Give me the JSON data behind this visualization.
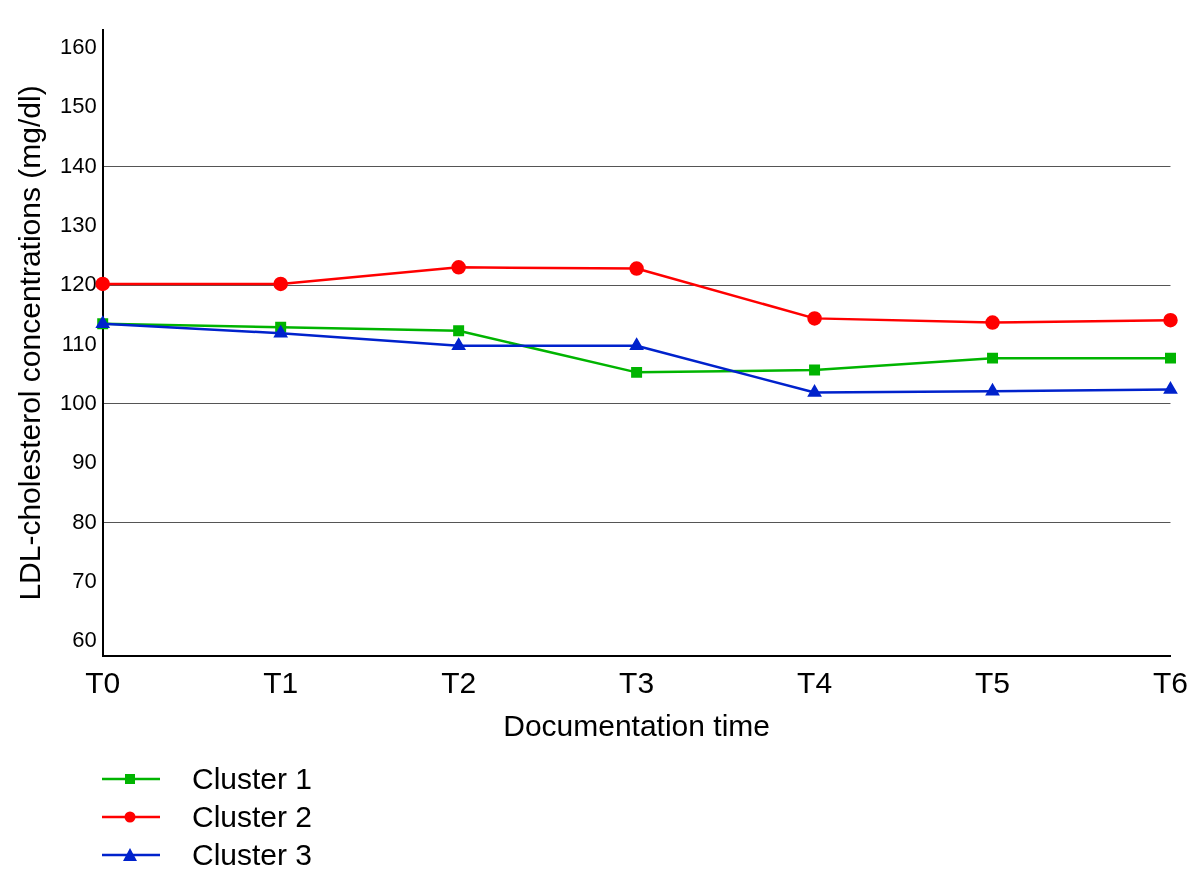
{
  "chart_data": {
    "type": "line",
    "xlabel": "Documentation time",
    "ylabel": "LDL-cholesterol concentrations (mg/dl)",
    "categories": [
      "T0",
      "T1",
      "T2",
      "T3",
      "T4",
      "T5",
      "T6"
    ],
    "series": [
      {
        "name": "Cluster 1",
        "color": "#00b400",
        "marker": "square",
        "values": [
          113.5,
          112.9,
          112.3,
          105.3,
          105.7,
          107.7,
          107.7
        ]
      },
      {
        "name": "Cluster 2",
        "color": "#ff0000",
        "marker": "circle",
        "values": [
          120.2,
          120.2,
          123,
          122.8,
          114.4,
          113.7,
          114.1
        ]
      },
      {
        "name": "Cluster 3",
        "color": "#0022cc",
        "marker": "triangle",
        "values": [
          113.5,
          111.9,
          109.8,
          109.8,
          101.9,
          102.1,
          102.4
        ]
      }
    ],
    "ylim": [
      57.5,
      163
    ],
    "yticks": [
      60,
      70,
      80,
      90,
      100,
      110,
      120,
      130,
      140,
      150,
      160
    ],
    "grid": "y",
    "legend": "bottom left",
    "line_style": "solid"
  }
}
